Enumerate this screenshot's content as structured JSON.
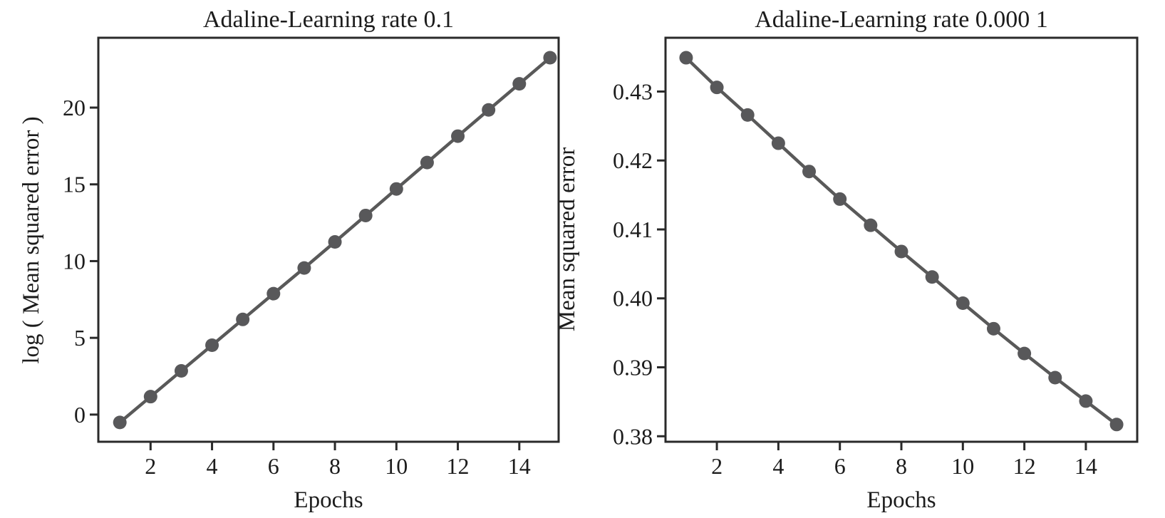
{
  "page": {
    "background": "#ffffff"
  },
  "styles": {
    "line_color": "#595959",
    "marker_color": "#58585a",
    "axis_color": "#2a2a2a",
    "text_color": "#1c1c1c"
  },
  "chart_data": [
    {
      "type": "line",
      "title": "Adaline-Learning rate 0.1",
      "xlabel": "Epochs",
      "ylabel": "log ( Mean squared error )",
      "marker": "filled-circle",
      "grid": false,
      "legend_position": "none",
      "x": [
        1,
        2,
        3,
        4,
        5,
        6,
        7,
        8,
        9,
        10,
        11,
        12,
        13,
        14,
        15
      ],
      "values": [
        -0.51,
        1.17,
        2.85,
        4.52,
        6.2,
        7.88,
        9.55,
        11.25,
        12.97,
        14.7,
        16.42,
        18.14,
        19.85,
        21.55,
        23.25
      ],
      "xlim": [
        0.3,
        15.28
      ],
      "ylim": [
        -1.77,
        24.55
      ],
      "xticks": [
        2,
        4,
        6,
        8,
        10,
        12,
        14
      ],
      "xtick_labels": [
        "2",
        "4",
        "6",
        "8",
        "10",
        "12",
        "14"
      ],
      "yticks": [
        0,
        5,
        10,
        15,
        20
      ],
      "ytick_labels": [
        "0",
        "5",
        "10",
        "15",
        "20"
      ]
    },
    {
      "type": "line",
      "title": "Adaline-Learning rate 0.000 1",
      "xlabel": "Epochs",
      "ylabel": "Mean squared error",
      "marker": "filled-circle",
      "grid": false,
      "legend_position": "none",
      "x": [
        1,
        2,
        3,
        4,
        5,
        6,
        7,
        8,
        9,
        10,
        11,
        12,
        13,
        14,
        15
      ],
      "values": [
        0.4349,
        0.4306,
        0.4266,
        0.4225,
        0.4184,
        0.4144,
        0.4106,
        0.4068,
        0.4031,
        0.3993,
        0.3956,
        0.392,
        0.3885,
        0.3851,
        0.3817
      ],
      "xlim": [
        0.33,
        15.67
      ],
      "ylim": [
        0.3792,
        0.4378
      ],
      "xticks": [
        2,
        4,
        6,
        8,
        10,
        12,
        14
      ],
      "xtick_labels": [
        "2",
        "4",
        "6",
        "8",
        "10",
        "12",
        "14"
      ],
      "yticks": [
        0.38,
        0.39,
        0.4,
        0.41,
        0.42,
        0.43
      ],
      "ytick_labels": [
        "0.38",
        "0.39",
        "0.40",
        "0.41",
        "0.42",
        "0.43"
      ]
    }
  ]
}
